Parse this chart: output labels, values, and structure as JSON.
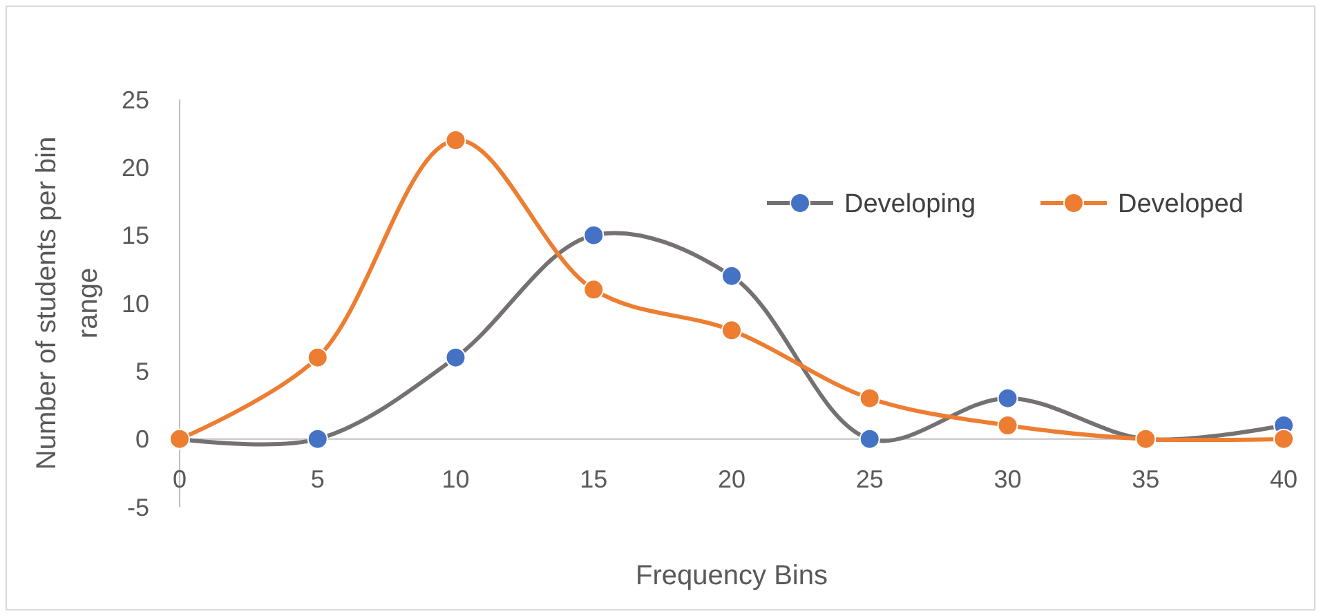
{
  "chart_data": {
    "type": "line",
    "xlabel": "Frequency Bins",
    "ylabel": "Number of students per bin range",
    "x": [
      0,
      5,
      10,
      15,
      20,
      25,
      30,
      35,
      40
    ],
    "series": [
      {
        "name": "Developing",
        "color": "#767171",
        "colors": [
          "#4472c4",
          "#4472c4",
          "#4472c4",
          "#4472c4",
          "#4472c4",
          "#4472c4",
          "#4472c4",
          "#4472c4",
          "#4472c4"
        ],
        "values": [
          0,
          0,
          6,
          15,
          12,
          0,
          3,
          0,
          1
        ]
      },
      {
        "name": "Developed",
        "color": "#ed7d31",
        "colors": [
          "#ed7d31",
          "#ed7d31",
          "#ed7d31",
          "#ed7d31",
          "#ed7d31",
          "#ed7d31",
          "#ed7d31",
          "#ed7d31",
          "#ed7d31"
        ],
        "values": [
          0,
          6,
          22,
          11,
          8,
          3,
          1,
          0,
          0
        ]
      }
    ],
    "xlim": [
      0,
      40
    ],
    "xticks": [
      0,
      5,
      10,
      15,
      20,
      25,
      30,
      35,
      40
    ],
    "ylim": [
      -5,
      25
    ],
    "yticks": [
      -5,
      0,
      5,
      10,
      15,
      20,
      25
    ],
    "grid": false,
    "legend": "right",
    "marker": "circle",
    "line_style": "solid"
  }
}
